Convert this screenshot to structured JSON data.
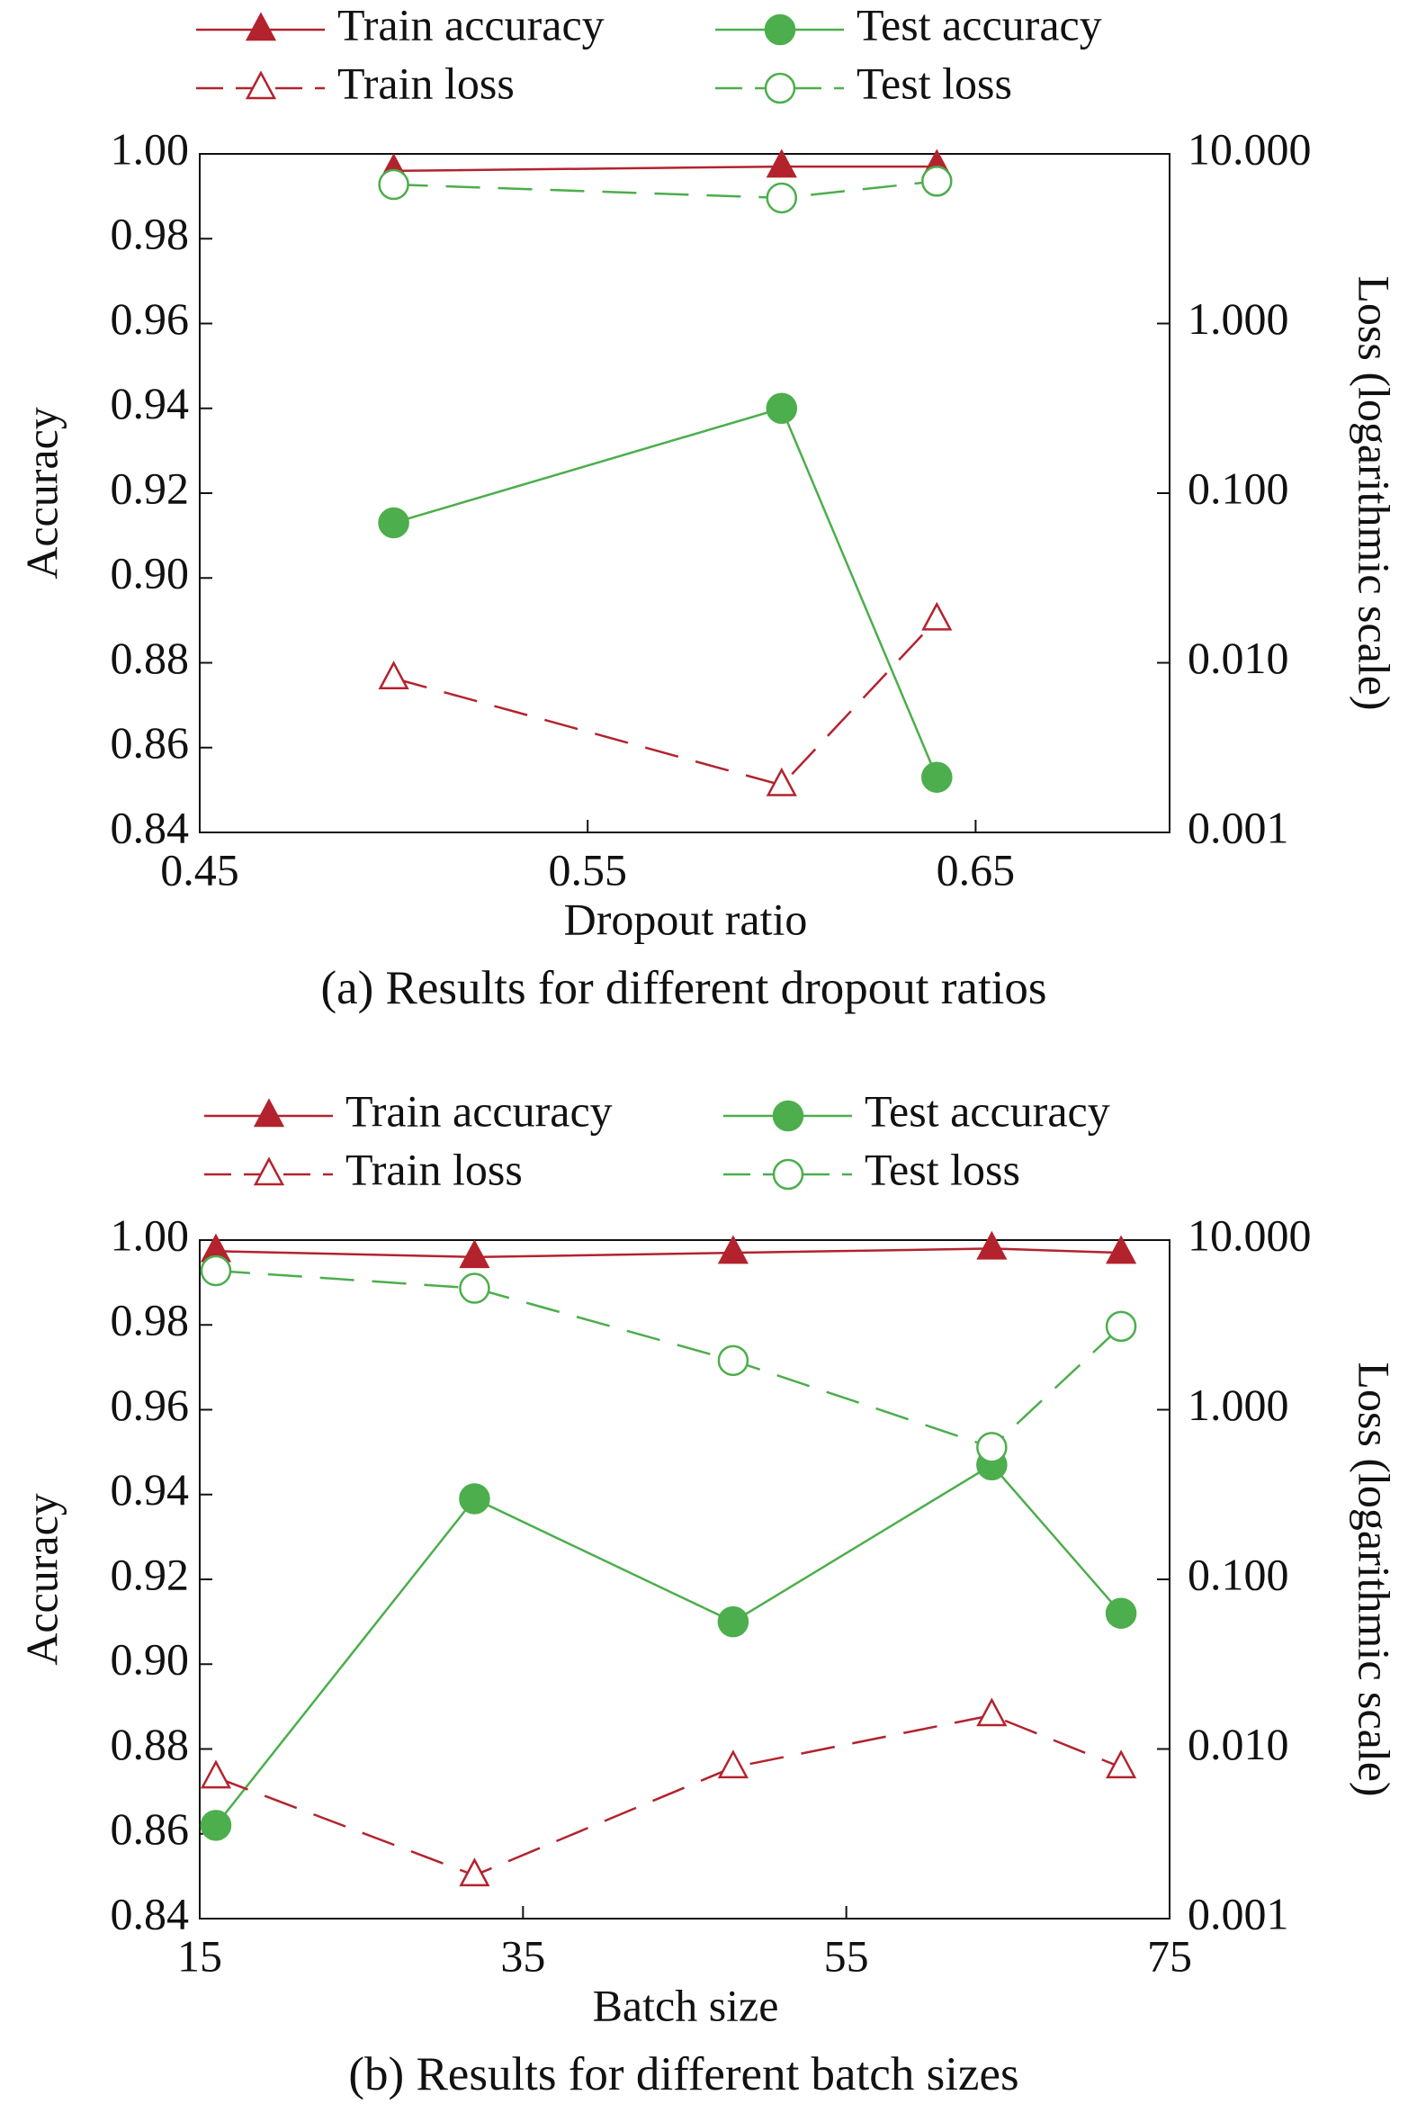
{
  "chart_data": [
    {
      "type": "line",
      "x_label": "Dropout ratio",
      "y_label": "Accuracy",
      "y2_label": "Loss (logarithmic scale)",
      "caption": "(a) Results for different dropout ratios",
      "x": [
        0.5,
        0.6,
        0.64
      ],
      "xlim": [
        0.45,
        0.7
      ],
      "xticks": [
        0.45,
        0.55,
        0.65
      ],
      "ylim": [
        0.84,
        1
      ],
      "yticks": [
        0.84,
        0.86,
        0.88,
        {
          "value": 0.9,
          "label": "0.90"
        },
        0.92,
        0.94,
        0.96,
        0.98,
        {
          "value": 1,
          "label": "1.00"
        }
      ],
      "y2lim": [
        0.001,
        10
      ],
      "y2_scale": "log",
      "y2ticks": [
        0.001,
        {
          "value": 0.01,
          "label": "0.010"
        },
        {
          "value": 0.1,
          "label": "0.100"
        },
        {
          "value": 1,
          "label": "1.000"
        },
        {
          "value": 10,
          "label": "10.000"
        }
      ],
      "series": [
        {
          "name": "Train accuracy",
          "color": "#b3232d",
          "marker": "triangle",
          "marker_fill": true,
          "line_style": "solid",
          "values": [
            0.996,
            0.997,
            0.997
          ]
        },
        {
          "name": "Test accuracy",
          "color": "#4cae4c",
          "marker": "circle",
          "marker_fill": true,
          "line_style": "solid",
          "values": [
            0.913,
            0.94,
            0.853
          ]
        },
        {
          "name": "Train loss",
          "color": "#b3232d",
          "marker": "triangle",
          "marker_fill": false,
          "line_style": "dashed",
          "axis": "y2",
          "values": [
            0.0081,
            0.0019,
            0.018
          ]
        },
        {
          "name": "Test loss",
          "color": "#4cae4c",
          "marker": "circle",
          "marker_fill": false,
          "line_style": "dashed",
          "axis": "y2",
          "values": [
            6.6,
            5.5,
            6.9
          ]
        }
      ]
    },
    {
      "type": "line",
      "x_label": "Batch size",
      "y_label": "Accuracy",
      "y2_label": "Loss (logarithmic scale)",
      "caption": "(b) Results for different batch sizes",
      "x": [
        16,
        32,
        48,
        64,
        72
      ],
      "xlim": [
        15,
        75
      ],
      "xticks": [
        15,
        35,
        55,
        75
      ],
      "ylim": [
        0.84,
        1
      ],
      "yticks": [
        0.84,
        0.86,
        0.88,
        {
          "value": 0.9,
          "label": "0.90"
        },
        0.92,
        0.94,
        0.96,
        0.98,
        {
          "value": 1,
          "label": "1.00"
        }
      ],
      "y2lim": [
        0.001,
        10
      ],
      "y2_scale": "log",
      "y2ticks": [
        0.001,
        {
          "value": 0.01,
          "label": "0.010"
        },
        {
          "value": 0.1,
          "label": "0.100"
        },
        {
          "value": 1,
          "label": "1.000"
        },
        {
          "value": 10,
          "label": "10.000"
        }
      ],
      "series": [
        {
          "name": "Train accuracy",
          "color": "#b3232d",
          "marker": "triangle",
          "marker_fill": true,
          "line_style": "solid",
          "values": [
            0.9974,
            0.996,
            0.997,
            0.998,
            0.997
          ]
        },
        {
          "name": "Test accuracy",
          "color": "#4cae4c",
          "marker": "circle",
          "marker_fill": true,
          "line_style": "solid",
          "values": [
            0.862,
            0.939,
            0.91,
            0.947,
            0.912
          ]
        },
        {
          "name": "Train loss",
          "color": "#b3232d",
          "marker": "triangle",
          "marker_fill": false,
          "line_style": "dashed",
          "axis": "y2",
          "values": [
            0.0068,
            0.0018,
            0.0078,
            0.0158,
            0.0078
          ]
        },
        {
          "name": "Test loss",
          "color": "#4cae4c",
          "marker": "circle",
          "marker_fill": false,
          "line_style": "dashed",
          "axis": "y2",
          "values": [
            6.6,
            5.2,
            1.95,
            0.6,
            3.1
          ]
        }
      ]
    }
  ]
}
